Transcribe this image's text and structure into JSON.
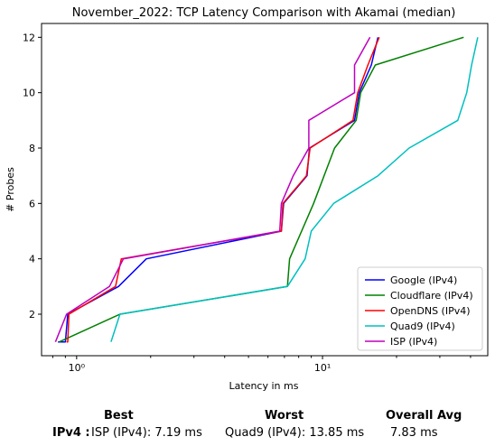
{
  "chart_data": {
    "type": "line",
    "title": "November_2022: TCP Latency Comparison with Akamai (median)",
    "xlabel": "Latency in ms",
    "ylabel": "# Probes",
    "xscale": "log",
    "xlim": [
      0.72,
      47
    ],
    "ylim": [
      0.5,
      12.5
    ],
    "x_ticks": [
      1,
      10
    ],
    "x_tick_labels": [
      "10⁰",
      "10¹"
    ],
    "y_ticks": [
      2,
      4,
      6,
      8,
      10,
      12
    ],
    "legend_loc": "lower right",
    "grid": false,
    "series": [
      {
        "name": "Google (IPv4)",
        "color": "#0000ff",
        "points": [
          [
            0.84,
            1
          ],
          [
            0.88,
            1
          ],
          [
            0.9,
            1
          ],
          [
            0.92,
            2
          ],
          [
            1.48,
            3
          ],
          [
            1.92,
            4
          ],
          [
            6.8,
            5
          ],
          [
            6.95,
            6
          ],
          [
            8.65,
            7
          ],
          [
            8.85,
            8
          ],
          [
            13.5,
            9
          ],
          [
            14.1,
            10
          ],
          [
            15.8,
            11
          ],
          [
            16.8,
            12
          ]
        ]
      },
      {
        "name": "Cloudflare (IPv4)",
        "color": "#008000",
        "points": [
          [
            0.85,
            1
          ],
          [
            1.5,
            2
          ],
          [
            7.2,
            3
          ],
          [
            7.35,
            4
          ],
          [
            9.2,
            6
          ],
          [
            11.2,
            8
          ],
          [
            13.7,
            9
          ],
          [
            14.3,
            10
          ],
          [
            16.4,
            11
          ],
          [
            37.5,
            12
          ]
        ]
      },
      {
        "name": "OpenDNS (IPv4)",
        "color": "#ff0000",
        "points": [
          [
            0.91,
            1
          ],
          [
            0.92,
            1
          ],
          [
            0.93,
            2
          ],
          [
            1.44,
            3
          ],
          [
            1.52,
            4
          ],
          [
            6.8,
            5
          ],
          [
            6.9,
            6
          ],
          [
            8.6,
            7
          ],
          [
            8.9,
            8
          ],
          [
            13.3,
            9
          ],
          [
            13.9,
            10
          ],
          [
            15.3,
            11
          ],
          [
            17.0,
            12
          ]
        ]
      },
      {
        "name": "Quad9 (IPv4)",
        "color": "#00bfbf",
        "points": [
          [
            1.38,
            1
          ],
          [
            1.5,
            2
          ],
          [
            7.2,
            3
          ],
          [
            8.5,
            4
          ],
          [
            9.0,
            5
          ],
          [
            11.1,
            6
          ],
          [
            16.8,
            7
          ],
          [
            22.5,
            8
          ],
          [
            35.5,
            9
          ],
          [
            38.6,
            10
          ],
          [
            40.4,
            11
          ],
          [
            42.8,
            12
          ]
        ]
      },
      {
        "name": "ISP (IPv4)",
        "color": "#bf00bf",
        "points": [
          [
            0.82,
            1
          ],
          [
            0.91,
            2
          ],
          [
            1.36,
            3
          ],
          [
            1.55,
            4
          ],
          [
            6.7,
            5
          ],
          [
            6.8,
            6
          ],
          [
            7.6,
            7
          ],
          [
            8.8,
            8
          ],
          [
            8.8,
            9
          ],
          [
            13.5,
            10
          ],
          [
            13.5,
            11
          ],
          [
            15.6,
            12
          ]
        ]
      }
    ]
  },
  "summary": {
    "best_header": "Best",
    "worst_header": "Worst",
    "avg_header": "Overall Avg",
    "row_label": "IPv4 :",
    "best_value": "ISP (IPv4): 7.19 ms",
    "worst_value": "Quad9 (IPv4): 13.85 ms",
    "avg_value": "7.83 ms"
  }
}
